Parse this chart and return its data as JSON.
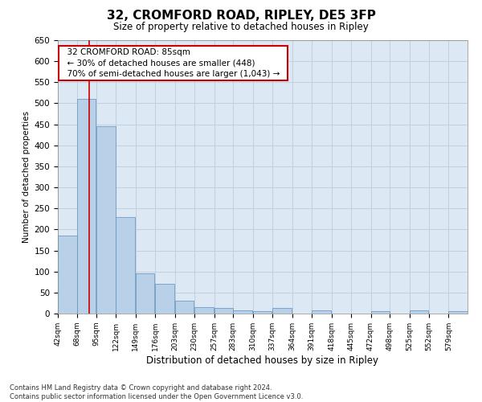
{
  "title": "32, CROMFORD ROAD, RIPLEY, DE5 3FP",
  "subtitle": "Size of property relative to detached houses in Ripley",
  "xlabel": "Distribution of detached houses by size in Ripley",
  "ylabel": "Number of detached properties",
  "footer_line1": "Contains HM Land Registry data © Crown copyright and database right 2024.",
  "footer_line2": "Contains public sector information licensed under the Open Government Licence v3.0.",
  "annotation_title": "32 CROMFORD ROAD: 85sqm",
  "annotation_line1": "← 30% of detached houses are smaller (448)",
  "annotation_line2": "70% of semi-detached houses are larger (1,043) →",
  "bar_color": "#b8d0e8",
  "bar_edge_color": "#6090b8",
  "grid_color": "#c0d0e0",
  "bg_color": "#dce8f4",
  "red_line_color": "#cc0000",
  "annotation_box_color": "#ffffff",
  "annotation_box_edge": "#cc0000",
  "bins": [
    42,
    68,
    95,
    122,
    149,
    176,
    203,
    230,
    257,
    283,
    310,
    337,
    364,
    391,
    418,
    445,
    472,
    498,
    525,
    552,
    579
  ],
  "counts": [
    185,
    510,
    445,
    230,
    95,
    70,
    30,
    15,
    13,
    7,
    5,
    14,
    0,
    7,
    0,
    0,
    5,
    0,
    7,
    0,
    5
  ],
  "red_line_x": 85,
  "ylim": [
    0,
    650
  ],
  "yticks": [
    0,
    50,
    100,
    150,
    200,
    250,
    300,
    350,
    400,
    450,
    500,
    550,
    600,
    650
  ]
}
